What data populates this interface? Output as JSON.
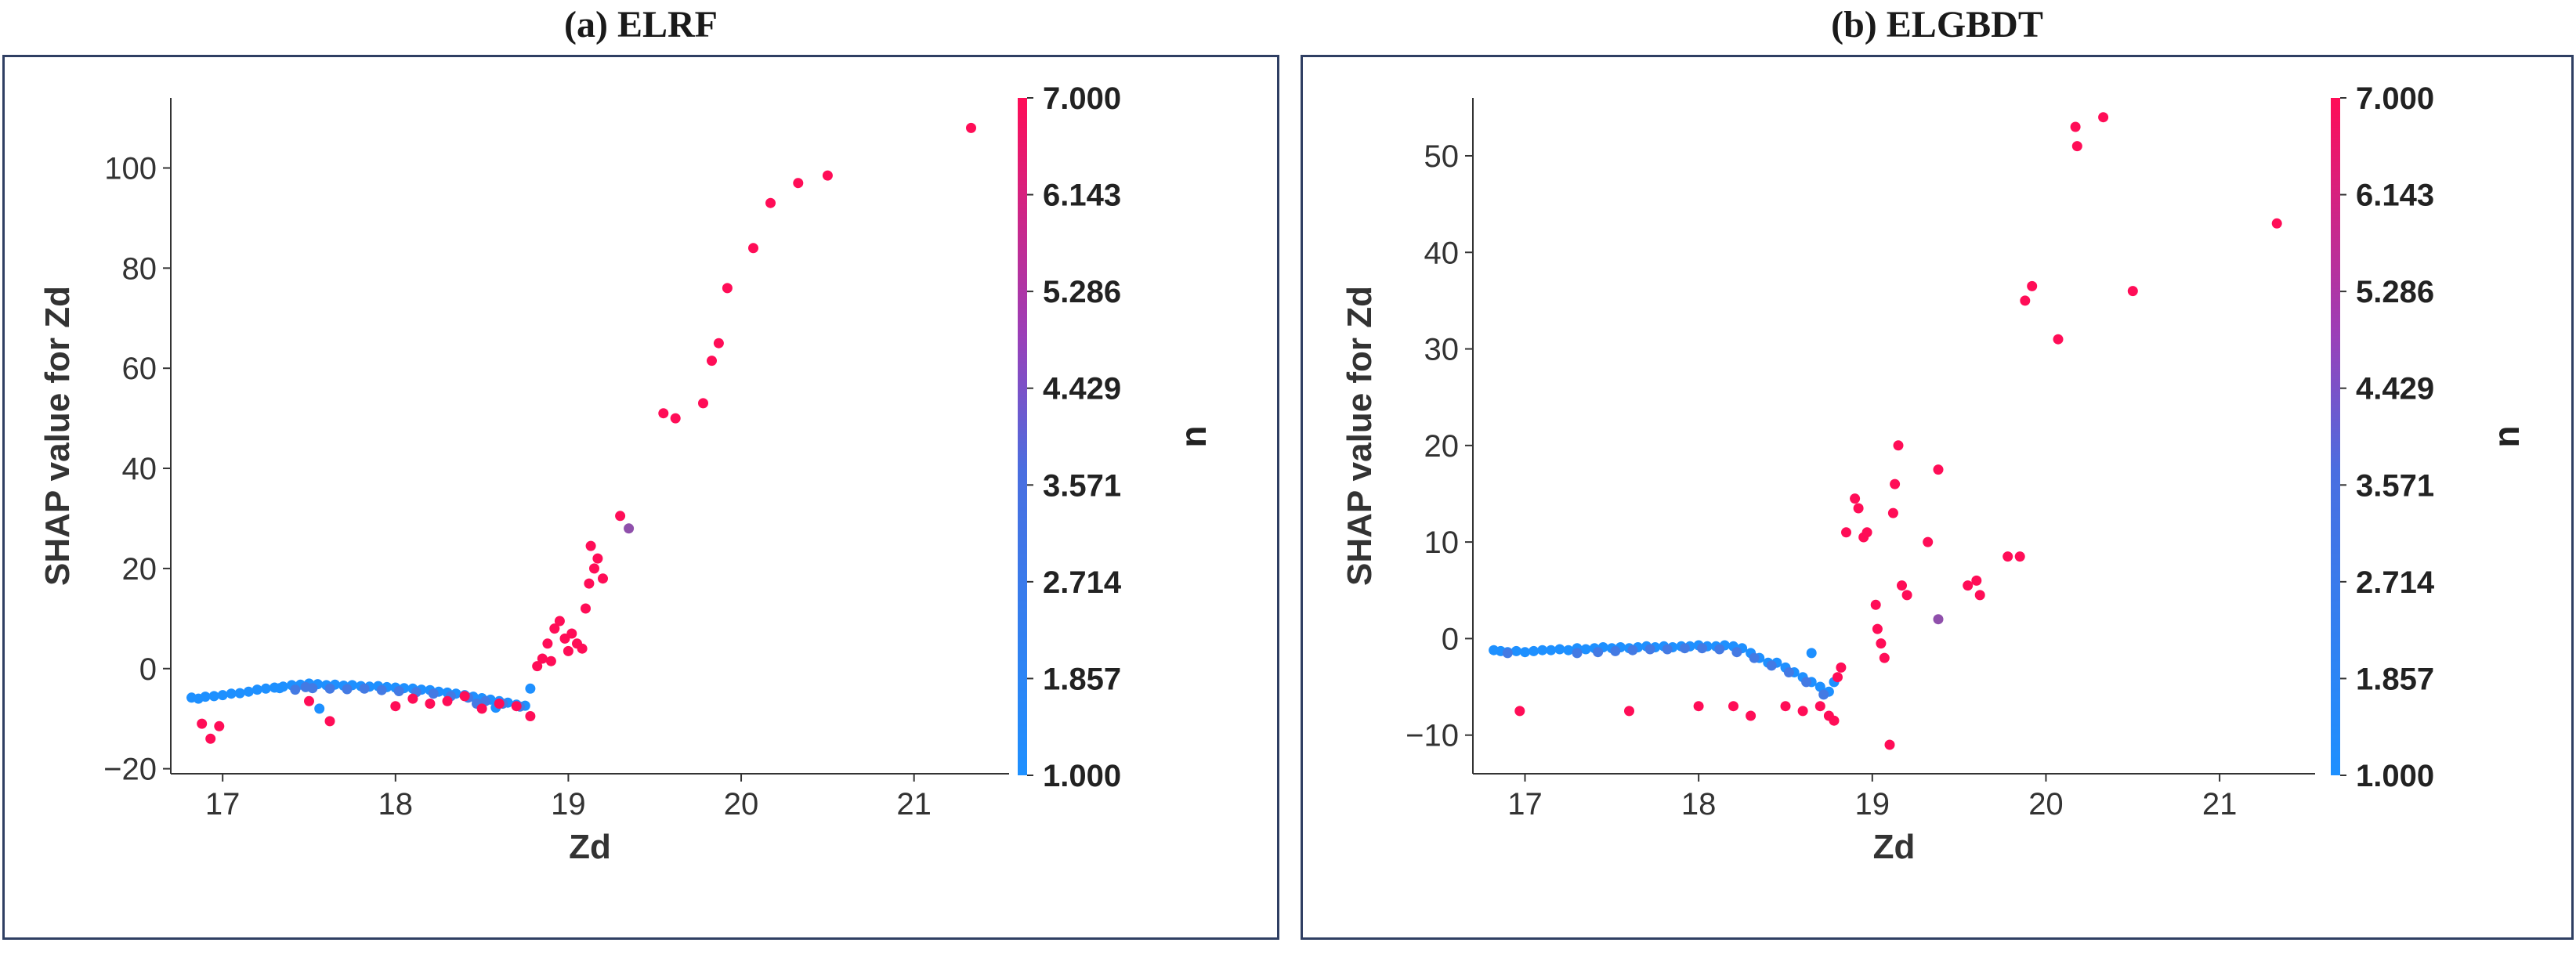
{
  "chart_data": [
    {
      "type": "scatter",
      "title": "(a) ELRF",
      "xlabel": "Zd",
      "ylabel": "SHAP value for Zd",
      "xlim": [
        16.7,
        21.55
      ],
      "ylim": [
        -21,
        114
      ],
      "xticks": [
        17,
        18,
        19,
        20,
        21
      ],
      "yticks": [
        -20,
        0,
        20,
        40,
        60,
        80,
        100
      ],
      "colorbar": {
        "label": "n",
        "range": [
          1.0,
          7.0
        ],
        "ticks": [
          "7.000",
          "6.143",
          "5.286",
          "4.429",
          "3.571",
          "2.714",
          "1.857",
          "1.000"
        ],
        "low_color": "#1e90ff",
        "high_color": "#ff0d57"
      },
      "grid": false,
      "points": [
        [
          16.82,
          -5.8,
          1
        ],
        [
          16.86,
          -6.0,
          1
        ],
        [
          16.9,
          -5.6,
          1
        ],
        [
          16.95,
          -5.5,
          1
        ],
        [
          17.0,
          -5.3,
          1
        ],
        [
          17.05,
          -5.0,
          1
        ],
        [
          17.1,
          -4.9,
          1
        ],
        [
          17.15,
          -4.6,
          1
        ],
        [
          17.2,
          -4.2,
          1
        ],
        [
          17.25,
          -4.0,
          1
        ],
        [
          17.3,
          -3.8,
          1
        ],
        [
          17.35,
          -3.6,
          1
        ],
        [
          17.4,
          -3.3,
          1
        ],
        [
          17.45,
          -3.2,
          1
        ],
        [
          17.5,
          -3.0,
          1
        ],
        [
          17.55,
          -3.1,
          1
        ],
        [
          17.6,
          -3.3,
          1
        ],
        [
          17.65,
          -3.2,
          1
        ],
        [
          17.7,
          -3.4,
          1
        ],
        [
          17.75,
          -3.3,
          1
        ],
        [
          17.8,
          -3.5,
          1
        ],
        [
          17.85,
          -3.6,
          1
        ],
        [
          17.9,
          -3.5,
          1
        ],
        [
          17.95,
          -3.7,
          1
        ],
        [
          18.0,
          -3.8,
          1
        ],
        [
          18.05,
          -3.9,
          1
        ],
        [
          18.1,
          -4.0,
          1
        ],
        [
          18.15,
          -4.2,
          1
        ],
        [
          18.2,
          -4.3,
          1
        ],
        [
          18.25,
          -4.6,
          1
        ],
        [
          18.3,
          -4.8,
          1
        ],
        [
          18.35,
          -5.0,
          1
        ],
        [
          18.4,
          -5.3,
          1
        ],
        [
          18.45,
          -5.6,
          1
        ],
        [
          18.5,
          -5.9,
          1
        ],
        [
          18.55,
          -6.2,
          1
        ],
        [
          18.6,
          -6.5,
          1
        ],
        [
          18.65,
          -6.8,
          1
        ],
        [
          18.7,
          -7.2,
          1
        ],
        [
          18.75,
          -7.4,
          1
        ],
        [
          17.42,
          -4.2,
          2
        ],
        [
          17.52,
          -3.9,
          2
        ],
        [
          17.62,
          -4.0,
          2
        ],
        [
          17.72,
          -4.1,
          2
        ],
        [
          17.82,
          -4.0,
          2
        ],
        [
          17.92,
          -4.3,
          2
        ],
        [
          18.02,
          -4.5,
          2
        ],
        [
          18.12,
          -4.7,
          2
        ],
        [
          18.22,
          -5.0,
          2
        ],
        [
          18.32,
          -5.5,
          2
        ],
        [
          18.42,
          -5.8,
          2
        ],
        [
          18.52,
          -6.5,
          2
        ],
        [
          18.62,
          -7.0,
          2
        ],
        [
          18.72,
          -7.6,
          2
        ],
        [
          17.56,
          -8.0,
          1
        ],
        [
          18.78,
          -4.0,
          1
        ],
        [
          18.47,
          -7.0,
          2
        ],
        [
          17.33,
          -3.9,
          1
        ],
        [
          17.48,
          -3.7,
          2
        ],
        [
          18.58,
          -7.8,
          1
        ],
        [
          16.88,
          -11.0,
          7
        ],
        [
          16.93,
          -14.0,
          7
        ],
        [
          16.98,
          -11.5,
          7
        ],
        [
          17.5,
          -6.5,
          7
        ],
        [
          17.62,
          -10.5,
          7
        ],
        [
          18.0,
          -7.5,
          7
        ],
        [
          18.1,
          -6.0,
          7
        ],
        [
          18.2,
          -7.0,
          7
        ],
        [
          18.3,
          -6.5,
          7
        ],
        [
          18.4,
          -5.5,
          7
        ],
        [
          18.5,
          -8.0,
          7
        ],
        [
          18.6,
          -7.0,
          7
        ],
        [
          18.7,
          -7.5,
          7
        ],
        [
          18.78,
          -9.5,
          7
        ],
        [
          18.82,
          0.5,
          7
        ],
        [
          18.85,
          2.0,
          7
        ],
        [
          18.88,
          5.0,
          7
        ],
        [
          18.9,
          1.5,
          7
        ],
        [
          18.92,
          8.0,
          7
        ],
        [
          18.95,
          9.5,
          7
        ],
        [
          18.98,
          6.0,
          7
        ],
        [
          19.0,
          3.5,
          7
        ],
        [
          19.02,
          7.0,
          7
        ],
        [
          19.05,
          5.0,
          7
        ],
        [
          19.08,
          4.0,
          7
        ],
        [
          19.1,
          12.0,
          7
        ],
        [
          19.12,
          17.0,
          7
        ],
        [
          19.13,
          24.5,
          7
        ],
        [
          19.15,
          20.0,
          7
        ],
        [
          19.17,
          22.0,
          7
        ],
        [
          19.2,
          18.0,
          7
        ],
        [
          19.3,
          30.5,
          7
        ],
        [
          19.35,
          28.0,
          4
        ],
        [
          19.55,
          51.0,
          7
        ],
        [
          19.62,
          50.0,
          7
        ],
        [
          19.78,
          53.0,
          7
        ],
        [
          19.83,
          61.5,
          7
        ],
        [
          19.87,
          65.0,
          7
        ],
        [
          19.92,
          76.0,
          7
        ],
        [
          20.07,
          84.0,
          7
        ],
        [
          20.17,
          93.0,
          7
        ],
        [
          20.33,
          97.0,
          7
        ],
        [
          20.5,
          98.5,
          7
        ],
        [
          21.33,
          108.0,
          7
        ]
      ]
    },
    {
      "type": "scatter",
      "title": "(b) ELGBDT",
      "xlabel": "Zd",
      "ylabel": "SHAP value for Zd",
      "xlim": [
        16.7,
        21.55
      ],
      "ylim": [
        -14,
        56
      ],
      "xticks": [
        17,
        18,
        19,
        20,
        21
      ],
      "yticks": [
        -10,
        0,
        10,
        20,
        30,
        40,
        50
      ],
      "colorbar": {
        "label": "n",
        "range": [
          1.0,
          7.0
        ],
        "ticks": [
          "7.000",
          "6.143",
          "5.286",
          "4.429",
          "3.571",
          "2.714",
          "1.857",
          "1.000"
        ],
        "low_color": "#1e90ff",
        "high_color": "#ff0d57"
      },
      "grid": false,
      "points": [
        [
          16.82,
          -1.2,
          1
        ],
        [
          16.86,
          -1.3,
          1
        ],
        [
          16.9,
          -1.4,
          1
        ],
        [
          16.95,
          -1.3,
          1
        ],
        [
          17.0,
          -1.4,
          1
        ],
        [
          17.05,
          -1.3,
          1
        ],
        [
          17.1,
          -1.2,
          1
        ],
        [
          17.15,
          -1.2,
          1
        ],
        [
          17.2,
          -1.1,
          1
        ],
        [
          17.25,
          -1.2,
          1
        ],
        [
          17.3,
          -1.0,
          1
        ],
        [
          17.35,
          -1.1,
          1
        ],
        [
          17.4,
          -1.0,
          1
        ],
        [
          17.45,
          -0.9,
          1
        ],
        [
          17.5,
          -1.0,
          1
        ],
        [
          17.55,
          -0.9,
          1
        ],
        [
          17.6,
          -1.0,
          1
        ],
        [
          17.65,
          -0.9,
          1
        ],
        [
          17.7,
          -0.8,
          1
        ],
        [
          17.75,
          -0.9,
          1
        ],
        [
          17.8,
          -0.8,
          1
        ],
        [
          17.85,
          -0.9,
          1
        ],
        [
          17.9,
          -0.8,
          1
        ],
        [
          17.95,
          -0.8,
          1
        ],
        [
          18.0,
          -0.7,
          1
        ],
        [
          18.05,
          -0.8,
          1
        ],
        [
          18.1,
          -0.8,
          1
        ],
        [
          18.15,
          -0.7,
          1
        ],
        [
          18.2,
          -0.8,
          1
        ],
        [
          18.25,
          -1.0,
          1
        ],
        [
          18.3,
          -1.5,
          1
        ],
        [
          18.35,
          -2.0,
          1
        ],
        [
          18.4,
          -2.5,
          1
        ],
        [
          18.45,
          -2.5,
          1
        ],
        [
          18.5,
          -3.0,
          1
        ],
        [
          18.55,
          -3.5,
          1
        ],
        [
          18.6,
          -4.0,
          1
        ],
        [
          18.65,
          -4.5,
          1
        ],
        [
          18.7,
          -5.0,
          1
        ],
        [
          18.75,
          -5.5,
          1
        ],
        [
          17.42,
          -1.4,
          2
        ],
        [
          17.52,
          -1.3,
          2
        ],
        [
          17.62,
          -1.2,
          2
        ],
        [
          17.72,
          -1.1,
          2
        ],
        [
          17.82,
          -1.1,
          2
        ],
        [
          17.92,
          -1.0,
          2
        ],
        [
          18.02,
          -1.0,
          2
        ],
        [
          18.12,
          -1.1,
          2
        ],
        [
          18.22,
          -1.4,
          2
        ],
        [
          18.32,
          -2.0,
          2
        ],
        [
          18.42,
          -2.8,
          2
        ],
        [
          18.52,
          -3.5,
          2
        ],
        [
          18.62,
          -4.5,
          2
        ],
        [
          18.72,
          -5.8,
          2
        ],
        [
          18.65,
          -1.5,
          1
        ],
        [
          18.78,
          -4.5,
          1
        ],
        [
          17.3,
          -1.5,
          2
        ],
        [
          16.9,
          -1.5,
          2
        ],
        [
          16.97,
          -7.5,
          7
        ],
        [
          17.6,
          -7.5,
          7
        ],
        [
          18.0,
          -7.0,
          7
        ],
        [
          18.2,
          -7.0,
          7
        ],
        [
          18.3,
          -8.0,
          7
        ],
        [
          18.5,
          -7.0,
          7
        ],
        [
          18.6,
          -7.5,
          7
        ],
        [
          18.7,
          -7.0,
          7
        ],
        [
          18.75,
          -8.0,
          7
        ],
        [
          18.78,
          -8.5,
          7
        ],
        [
          18.8,
          -4.0,
          7
        ],
        [
          18.82,
          -3.0,
          7
        ],
        [
          18.85,
          11.0,
          7
        ],
        [
          18.9,
          14.5,
          7
        ],
        [
          18.92,
          13.5,
          7
        ],
        [
          18.95,
          10.5,
          7
        ],
        [
          18.97,
          11.0,
          7
        ],
        [
          19.02,
          3.5,
          7
        ],
        [
          19.03,
          1.0,
          7
        ],
        [
          19.05,
          -0.5,
          7
        ],
        [
          19.07,
          -2.0,
          7
        ],
        [
          19.1,
          -11.0,
          7
        ],
        [
          19.12,
          13.0,
          7
        ],
        [
          19.13,
          16.0,
          7
        ],
        [
          19.15,
          20.0,
          7
        ],
        [
          19.17,
          5.5,
          7
        ],
        [
          19.2,
          4.5,
          7
        ],
        [
          19.32,
          10.0,
          7
        ],
        [
          19.38,
          17.5,
          7
        ],
        [
          19.38,
          2.0,
          4
        ],
        [
          19.55,
          5.5,
          7
        ],
        [
          19.6,
          6.0,
          7
        ],
        [
          19.62,
          4.5,
          7
        ],
        [
          19.78,
          8.5,
          7
        ],
        [
          19.85,
          8.5,
          7
        ],
        [
          19.88,
          35.0,
          7
        ],
        [
          19.92,
          36.5,
          7
        ],
        [
          20.07,
          31.0,
          7
        ],
        [
          20.17,
          53.0,
          7
        ],
        [
          20.18,
          51.0,
          7
        ],
        [
          20.33,
          54.0,
          7
        ],
        [
          20.5,
          36.0,
          7
        ],
        [
          21.33,
          43.0,
          7
        ]
      ]
    }
  ]
}
